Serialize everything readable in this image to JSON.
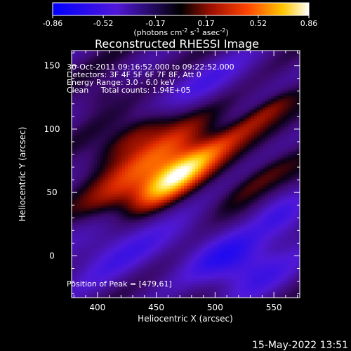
{
  "colorbar": {
    "ticks": [
      "-0.86",
      "-0.52",
      "-0.17",
      "0.17",
      "0.52",
      "0.86"
    ],
    "units_main": "(photons cm",
    "units_sup1": "-2",
    "units_mid": " s",
    "units_sup2": "-1",
    "units_end": " asec",
    "units_sup3": "-2",
    "units_close": ")"
  },
  "footer": {
    "timestamp": "15-May-2022 13:51"
  },
  "colors": {
    "background": "#000000",
    "axes": "#ffffff"
  },
  "chart_data": {
    "type": "heatmap",
    "title": "Reconstructed RHESSI Image",
    "xlabel": "Heliocentric X (arcsec)",
    "ylabel": "Heliocentric Y (arcsec)",
    "xlim": [
      378,
      572
    ],
    "ylim": [
      -33,
      162
    ],
    "x_ticks": [
      400,
      450,
      500,
      550
    ],
    "y_ticks": [
      0,
      50,
      100,
      150
    ],
    "colormap": "RHESSI red-temperature",
    "value_range": [
      -0.86,
      0.86
    ],
    "annotations": [
      "30-Oct-2011 09:16:52.000 to 09:22:52.000",
      "Detectors: 3F 4F 5F 6F 7F 8F, Att 0",
      "Energy Range: 3.0 - 6.0 keV",
      "Clean     Total counts: 1.94E+05"
    ],
    "peak_label": "Position of Peak = [479,61]",
    "peak": {
      "x": 479,
      "y": 61,
      "value": 0.86
    },
    "sources": [
      {
        "x": 465,
        "y": 62,
        "sx": 28,
        "sy": 9,
        "angle_deg": 32,
        "amp": 1.05
      },
      {
        "x": 452,
        "y": 78,
        "sx": 34,
        "sy": 11,
        "angle_deg": 32,
        "amp": 0.55
      },
      {
        "x": 430,
        "y": 95,
        "sx": 30,
        "sy": 8,
        "angle_deg": 32,
        "amp": 0.45
      },
      {
        "x": 510,
        "y": 92,
        "sx": 34,
        "sy": 7,
        "angle_deg": 32,
        "amp": 0.35
      },
      {
        "x": 535,
        "y": 60,
        "sx": 34,
        "sy": 7,
        "angle_deg": 32,
        "amp": 0.3
      },
      {
        "x": 410,
        "y": 45,
        "sx": 28,
        "sy": 9,
        "angle_deg": 32,
        "amp": 0.3
      },
      {
        "x": 548,
        "y": 118,
        "sx": 22,
        "sy": 6,
        "angle_deg": 32,
        "amp": 0.25
      },
      {
        "x": 405,
        "y": 128,
        "sx": 18,
        "sy": 7,
        "angle_deg": 32,
        "amp": 0.2
      },
      {
        "x": 520,
        "y": -5,
        "sx": 30,
        "sy": 18,
        "angle_deg": 0,
        "amp": -0.55
      },
      {
        "x": 415,
        "y": 5,
        "sx": 40,
        "sy": 18,
        "angle_deg": 20,
        "amp": -0.35
      },
      {
        "x": 490,
        "y": 135,
        "sx": 40,
        "sy": 12,
        "angle_deg": 20,
        "amp": -0.3
      },
      {
        "x": 560,
        "y": 30,
        "sx": 18,
        "sy": 15,
        "angle_deg": 0,
        "amp": -0.3
      }
    ]
  }
}
